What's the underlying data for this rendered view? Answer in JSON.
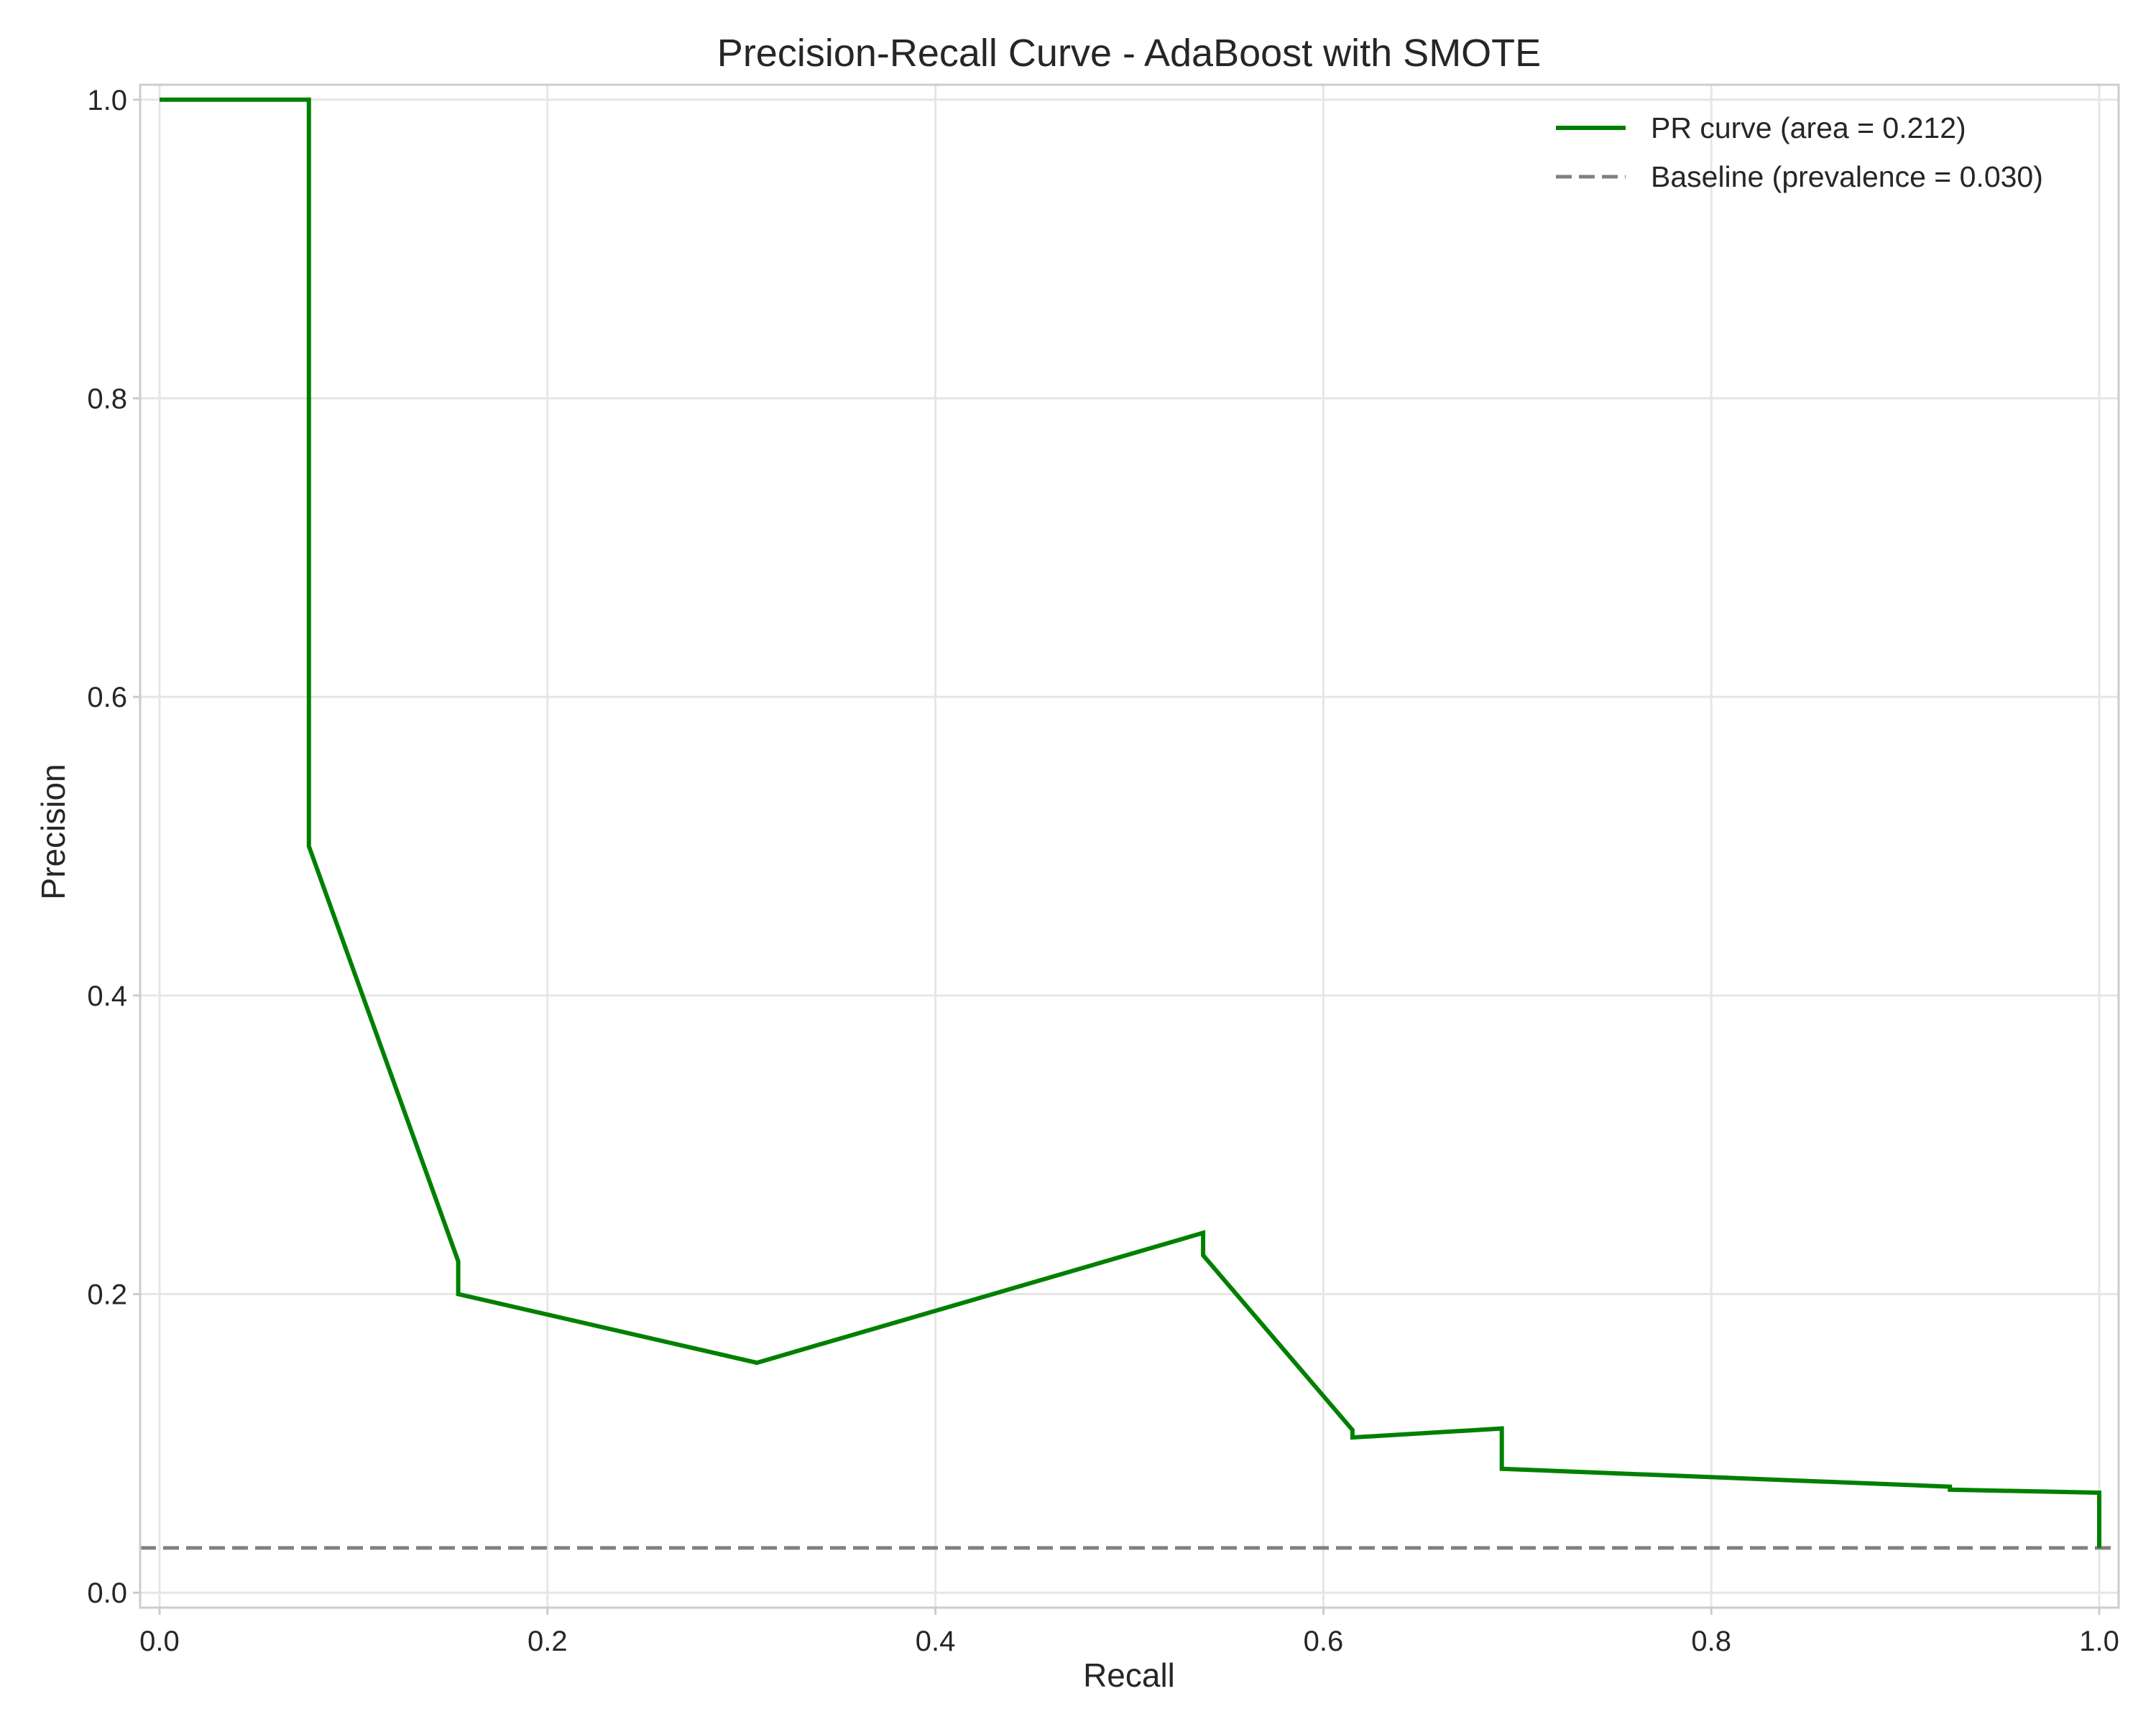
{
  "chart_data": {
    "type": "line",
    "title": "Precision-Recall Curve - AdaBoost with SMOTE",
    "xlabel": "Recall",
    "ylabel": "Precision",
    "xlim": [
      -0.01,
      1.01
    ],
    "ylim": [
      -0.01,
      1.01
    ],
    "xticks": [
      0.0,
      0.2,
      0.4,
      0.6,
      0.8,
      1.0
    ],
    "yticks": [
      0.0,
      0.2,
      0.4,
      0.6,
      0.8,
      1.0
    ],
    "xtick_labels": [
      "0.0",
      "0.2",
      "0.4",
      "0.6",
      "0.8",
      "1.0"
    ],
    "ytick_labels": [
      "0.0",
      "0.2",
      "0.4",
      "0.6",
      "0.8",
      "1.0"
    ],
    "grid": true,
    "legend_position": "top-right",
    "series": [
      {
        "name": "PR curve (area = 0.212)",
        "color": "#008000",
        "style": "solid",
        "x": [
          0.0,
          0.077,
          0.077,
          0.154,
          0.154,
          0.308,
          0.538,
          0.538,
          0.615,
          0.615,
          0.692,
          0.692,
          0.923,
          0.923,
          1.0,
          1.0
        ],
        "y": [
          1.0,
          1.0,
          0.5,
          0.222,
          0.2,
          0.154,
          0.241,
          0.226,
          0.109,
          0.104,
          0.11,
          0.083,
          0.071,
          0.069,
          0.067,
          0.03
        ]
      },
      {
        "name": "Baseline (prevalence = 0.030)",
        "color": "#808080",
        "style": "dashed",
        "y_constant": 0.03
      }
    ]
  }
}
